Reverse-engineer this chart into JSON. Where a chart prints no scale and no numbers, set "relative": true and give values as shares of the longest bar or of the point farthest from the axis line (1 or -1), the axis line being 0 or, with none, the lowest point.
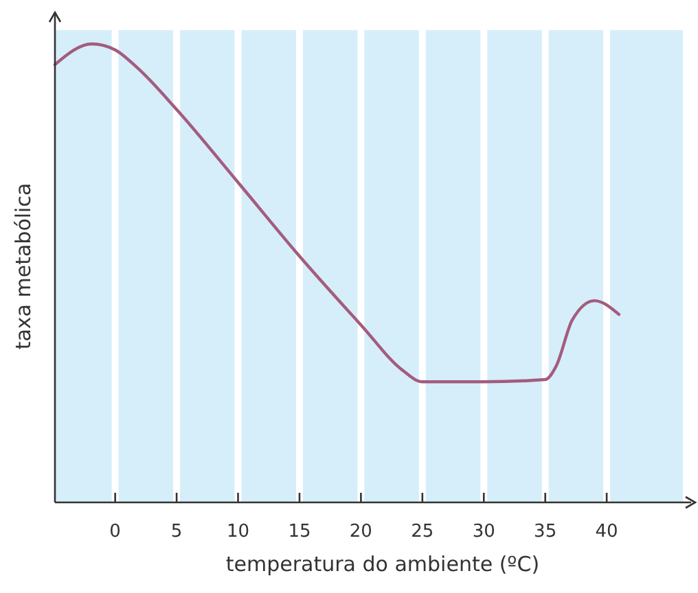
{
  "chart_data": {
    "type": "line",
    "relative": true,
    "xlabel": "temperatura do ambiente (ºC)",
    "ylabel": "taxa metabólica",
    "x": [
      -4.9,
      -1.9,
      0,
      1.8,
      5,
      10,
      15,
      20,
      23.4,
      25,
      30,
      35,
      35.9,
      37.2,
      39,
      41
    ],
    "series": [
      {
        "color": "#a35c7e",
        "values": [
          0.955,
          1,
          0.987,
          0.948,
          0.857,
          0.698,
          0.537,
          0.387,
          0.288,
          0.263,
          0.263,
          0.268,
          0.298,
          0.398,
          0.44,
          0.41
        ]
      }
    ],
    "xlim": [
      -4.9,
      46.2
    ],
    "xticks": [
      0,
      5,
      10,
      15,
      20,
      25,
      30,
      35,
      40
    ],
    "grid": "x",
    "marker": "none",
    "line_style": "solid"
  }
}
